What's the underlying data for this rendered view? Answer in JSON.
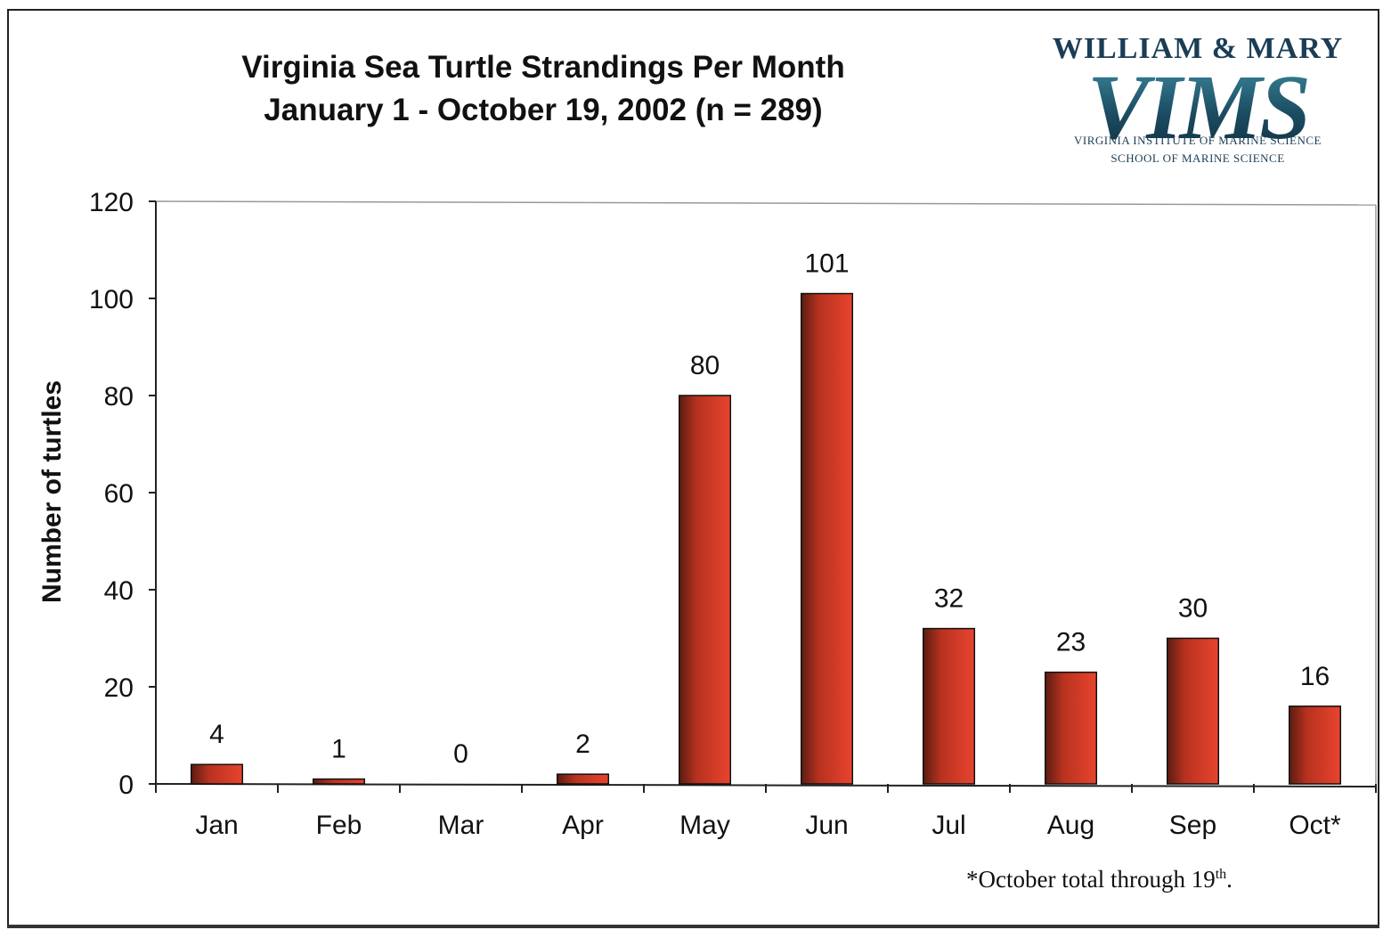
{
  "chart_data": {
    "type": "bar",
    "title_line1": "Virginia Sea Turtle Strandings Per Month",
    "title_line2": "January 1 - October 19, 2002 (n = 289)",
    "ylabel": "Number of turtles",
    "xlabel": "",
    "ylim": [
      0,
      120
    ],
    "yticks": [
      "0",
      "20",
      "40",
      "60",
      "80",
      "100",
      "120"
    ],
    "categories": [
      "Jan",
      "Feb",
      "Mar",
      "Apr",
      "May",
      "Jun",
      "Jul",
      "Aug",
      "Sep",
      "Oct*"
    ],
    "values": [
      4,
      1,
      0,
      2,
      80,
      101,
      32,
      23,
      30,
      16
    ],
    "data_labels": [
      "4",
      "1",
      "0",
      "2",
      "80",
      "101",
      "32",
      "23",
      "30",
      "16"
    ],
    "grid": false,
    "legend": "none",
    "bar_color": "#e8442f",
    "bar_color_dark": "#5a1d12"
  },
  "footnote": {
    "text": "*October total through 19",
    "superscript": "th",
    "end": "."
  },
  "logo": {
    "line1": "WILLIAM & MARY",
    "line2": "VIMS",
    "line3": "VIRGINIA INSTITUTE OF MARINE SCIENCE",
    "line4": "SCHOOL OF MARINE SCIENCE"
  }
}
